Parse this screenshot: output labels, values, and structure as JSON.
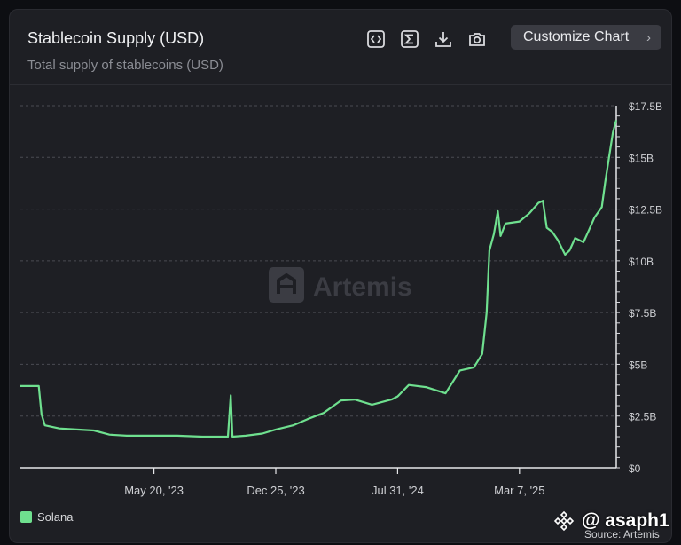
{
  "header": {
    "title": "Stablecoin Supply (USD)",
    "subtitle": "Total supply of stablecoins (USD)",
    "customize_label": "Customize Chart",
    "tools": [
      "code-icon",
      "sigma-icon",
      "download-icon",
      "camera-icon"
    ]
  },
  "watermark": "Artemis",
  "source": "Source: Artemis",
  "overlay_handle": "@ asaph1",
  "colors": {
    "series": "#6fe08f",
    "background": "#1e1f24"
  },
  "chart_data": {
    "type": "line",
    "title": "Stablecoin Supply (USD)",
    "xlabel": "",
    "ylabel": "",
    "ylim": [
      0,
      17.5
    ],
    "y_unit": "B USD",
    "y_ticks": [
      "$0",
      "$2.5B",
      "$5B",
      "$7.5B",
      "$10B",
      "$12.5B",
      "$15B",
      "$17.5B"
    ],
    "y_tick_values": [
      0,
      2.5,
      5,
      7.5,
      10,
      12.5,
      15,
      17.5
    ],
    "x_range": [
      "2022-09-22",
      "2025-08-28"
    ],
    "x_ticks": [
      "May 20, '23",
      "Dec 25, '23",
      "Jul 31, '24",
      "Mar 7, '25"
    ],
    "x_tick_dates": [
      "2023-05-20",
      "2023-12-25",
      "2024-07-31",
      "2025-03-07"
    ],
    "grid": true,
    "legend_position": "bottom-left",
    "series": [
      {
        "name": "Solana",
        "color": "#6fe08f",
        "points": [
          [
            "2022-09-22",
            3.95
          ],
          [
            "2022-10-10",
            3.95
          ],
          [
            "2022-10-25",
            3.95
          ],
          [
            "2022-10-30",
            2.6
          ],
          [
            "2022-11-05",
            2.05
          ],
          [
            "2022-12-01",
            1.9
          ],
          [
            "2023-01-01",
            1.85
          ],
          [
            "2023-02-01",
            1.8
          ],
          [
            "2023-03-01",
            1.6
          ],
          [
            "2023-04-01",
            1.55
          ],
          [
            "2023-05-20",
            1.55
          ],
          [
            "2023-07-01",
            1.55
          ],
          [
            "2023-08-15",
            1.5
          ],
          [
            "2023-09-30",
            1.5
          ],
          [
            "2023-10-05",
            3.5
          ],
          [
            "2023-10-08",
            1.5
          ],
          [
            "2023-11-01",
            1.55
          ],
          [
            "2023-12-01",
            1.65
          ],
          [
            "2023-12-25",
            1.85
          ],
          [
            "2024-01-25",
            2.05
          ],
          [
            "2024-02-20",
            2.35
          ],
          [
            "2024-03-20",
            2.65
          ],
          [
            "2024-04-20",
            3.25
          ],
          [
            "2024-05-15",
            3.3
          ],
          [
            "2024-06-15",
            3.05
          ],
          [
            "2024-07-20",
            3.3
          ],
          [
            "2024-07-31",
            3.45
          ],
          [
            "2024-08-20",
            4.0
          ],
          [
            "2024-09-20",
            3.9
          ],
          [
            "2024-10-25",
            3.6
          ],
          [
            "2024-11-20",
            4.7
          ],
          [
            "2024-12-15",
            4.85
          ],
          [
            "2024-12-30",
            5.5
          ],
          [
            "2025-01-07",
            7.5
          ],
          [
            "2025-01-12",
            10.5
          ],
          [
            "2025-01-20",
            11.3
          ],
          [
            "2025-01-27",
            12.4
          ],
          [
            "2025-02-01",
            11.2
          ],
          [
            "2025-02-10",
            11.8
          ],
          [
            "2025-03-07",
            11.9
          ],
          [
            "2025-03-25",
            12.3
          ],
          [
            "2025-04-10",
            12.8
          ],
          [
            "2025-04-18",
            12.9
          ],
          [
            "2025-04-25",
            11.6
          ],
          [
            "2025-05-05",
            11.4
          ],
          [
            "2025-05-15",
            11.0
          ],
          [
            "2025-05-28",
            10.3
          ],
          [
            "2025-06-05",
            10.5
          ],
          [
            "2025-06-15",
            11.1
          ],
          [
            "2025-06-30",
            10.9
          ],
          [
            "2025-07-10",
            11.5
          ],
          [
            "2025-07-20",
            12.1
          ],
          [
            "2025-07-28",
            12.4
          ],
          [
            "2025-08-02",
            12.6
          ],
          [
            "2025-08-08",
            13.8
          ],
          [
            "2025-08-15",
            15.0
          ],
          [
            "2025-08-22",
            16.2
          ],
          [
            "2025-08-28",
            16.8
          ]
        ]
      }
    ]
  }
}
